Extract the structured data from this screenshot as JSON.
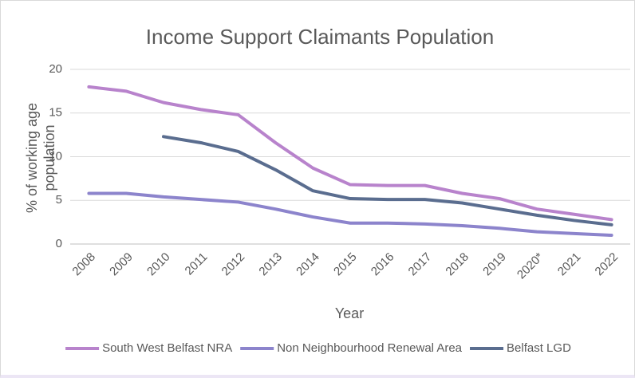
{
  "chart_data": {
    "type": "line",
    "title": "Income Support Claimants Population",
    "x_label": "Year",
    "y_label": "% of working age population",
    "categories": [
      "2008",
      "2009",
      "2010",
      "2011",
      "2012",
      "2013",
      "2014",
      "2015",
      "2016",
      "2017",
      "2018",
      "2019",
      "2020*",
      "2021",
      "2022"
    ],
    "series": [
      {
        "name": "South West Belfast NRA",
        "color": "#b883cc",
        "values": [
          18.0,
          17.5,
          16.2,
          15.4,
          14.8,
          11.6,
          8.7,
          6.8,
          6.7,
          6.7,
          5.8,
          5.2,
          4.0,
          3.4,
          2.8
        ]
      },
      {
        "name": "Non Neighbourhood Renewal Area",
        "color": "#8c84cc",
        "values": [
          5.8,
          5.8,
          5.4,
          5.1,
          4.8,
          4.0,
          3.1,
          2.4,
          2.4,
          2.3,
          2.1,
          1.8,
          1.4,
          1.2,
          1.0
        ]
      },
      {
        "name": "Belfast LGD",
        "color": "#5a6d8f",
        "values": [
          null,
          null,
          12.3,
          11.6,
          10.6,
          8.5,
          6.1,
          5.2,
          5.1,
          5.1,
          4.7,
          4.0,
          3.3,
          2.7,
          2.2
        ]
      }
    ],
    "ylim": [
      0,
      20
    ],
    "yticks": [
      0,
      5,
      10,
      15,
      20
    ],
    "grid": true,
    "legend": "bottom"
  }
}
